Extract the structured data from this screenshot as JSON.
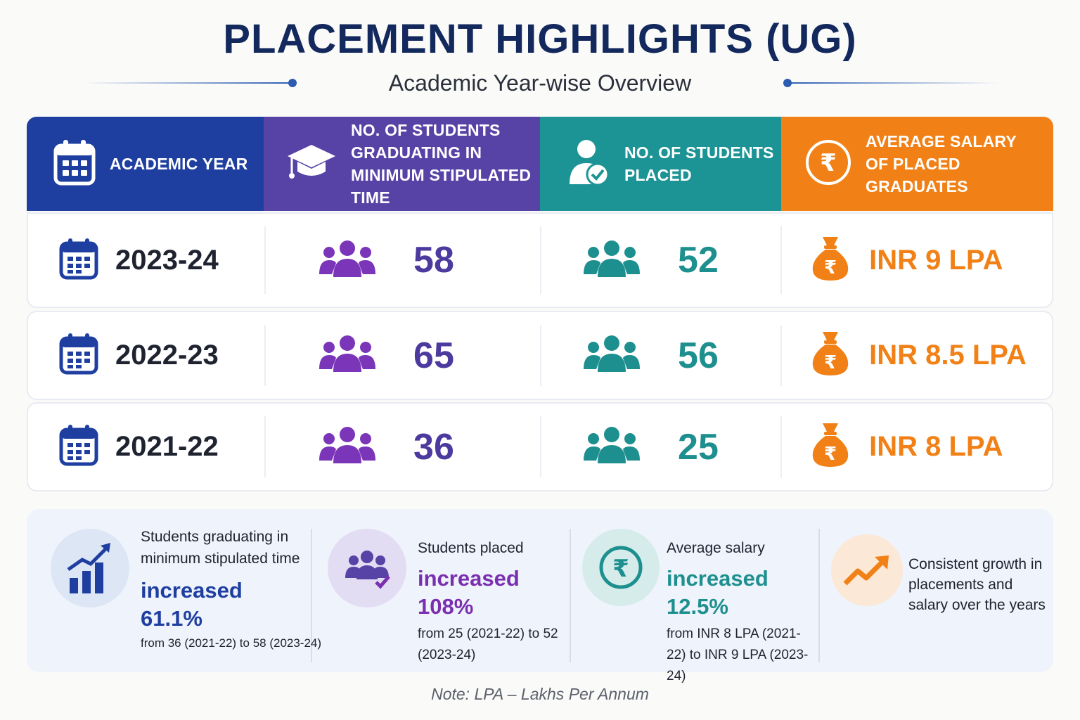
{
  "header": {
    "title": "PLACEMENT HIGHLIGHTS (UG)",
    "subtitle": "Academic Year-wise Overview"
  },
  "columns": [
    {
      "label": "ACADEMIC YEAR",
      "icon": "calendar-icon",
      "color": "#1e3fa0"
    },
    {
      "label": "NO. OF STUDENTS GRADUATING IN MINIMUM STIPULATED TIME",
      "icon": "graduation-cap-icon",
      "color": "#5742a6"
    },
    {
      "label": "NO. OF STUDENTS PLACED",
      "icon": "user-check-icon",
      "color": "#1c9394"
    },
    {
      "label": "AVERAGE SALARY OF PLACED GRADUATES",
      "icon": "rupee-icon",
      "color": "#f18116"
    }
  ],
  "rows": [
    {
      "year": "2023-24",
      "graduating": "58",
      "placed": "52",
      "salary": "INR 9 LPA"
    },
    {
      "year": "2022-23",
      "graduating": "65",
      "placed": "56",
      "salary": "INR 8.5 LPA"
    },
    {
      "year": "2021-22",
      "graduating": "36",
      "placed": "25",
      "salary": "INR 8 LPA"
    }
  ],
  "chart_data": {
    "type": "table",
    "columns": [
      "ACADEMIC YEAR",
      "NO. OF STUDENTS GRADUATING IN MINIMUM STIPULATED TIME",
      "NO. OF STUDENTS PLACED",
      "AVERAGE SALARY OF PLACED GRADUATES"
    ],
    "rows": [
      [
        "2023-24",
        58,
        52,
        "INR 9 LPA"
      ],
      [
        "2022-23",
        65,
        56,
        "INR 8.5 LPA"
      ],
      [
        "2021-22",
        36,
        25,
        "INR 8 LPA"
      ]
    ]
  },
  "summary": [
    {
      "label": "Students graduating in minimum stipulated time",
      "highlight": "increased 61.1%",
      "detail": "from 36 (2021-22) to 58 (2023-24)",
      "icon": "bar-chart-growth-icon",
      "color": "#1e3fa0"
    },
    {
      "label": "Students placed",
      "highlight": "increased 108%",
      "detail": "from 25 (2021-22) to 52 (2023-24)",
      "icon": "group-check-icon",
      "color": "#7a2fb0"
    },
    {
      "label": "Average salary",
      "highlight": "increased 12.5%",
      "detail": "from INR 8 LPA (2021-22) to INR 9 LPA (2023-24)",
      "icon": "rupee-icon",
      "color": "#1e8f8f"
    },
    {
      "label": "Consistent growth in placements and salary over the years",
      "icon": "trend-up-icon",
      "color": "#f18116"
    }
  ],
  "footer": {
    "note": "Note: LPA – Lakhs Per Annum"
  }
}
